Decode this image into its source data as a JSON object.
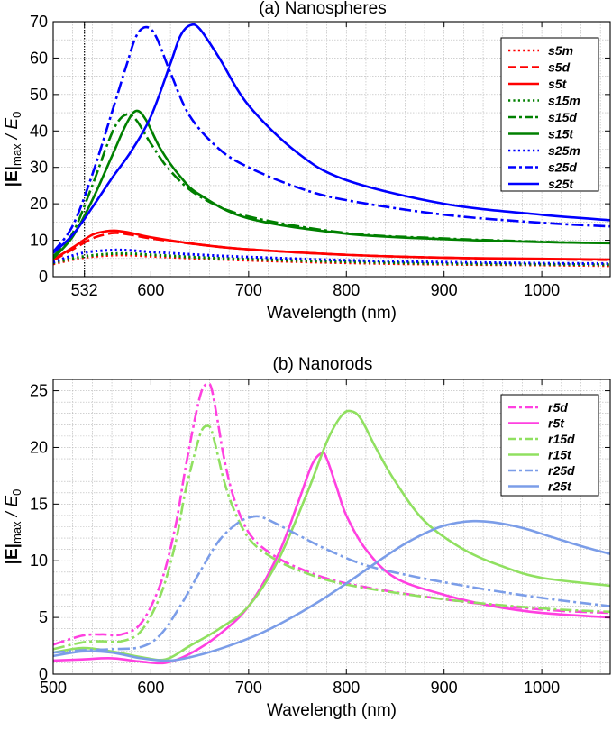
{
  "chart_data": [
    {
      "id": "a",
      "type": "line",
      "title": "(a) Nanospheres",
      "xlabel": "Wavelength (nm)",
      "ylabel_main": "|E|",
      "ylabel_sub": "max",
      "ylabel_tail": " / E",
      "ylabel_sub2": "0",
      "xlim": [
        500,
        1070
      ],
      "ylim": [
        0,
        70
      ],
      "xticks": [
        532,
        600,
        700,
        800,
        900,
        1000
      ],
      "yticks": [
        0,
        10,
        20,
        30,
        40,
        50,
        60,
        70
      ],
      "vline": 532,
      "grid": true,
      "legend_position": "top-right",
      "series": [
        {
          "name": "s5m",
          "color": "#ff0000",
          "dash": "dot",
          "x": [
            500,
            530,
            560,
            580,
            600,
            650,
            700,
            800,
            900,
            1000,
            1070
          ],
          "y": [
            3.5,
            5.2,
            5.9,
            5.9,
            5.6,
            5.0,
            4.5,
            3.8,
            3.4,
            3.2,
            3.0
          ]
        },
        {
          "name": "s5d",
          "color": "#ff0000",
          "dash": "dash",
          "x": [
            500,
            520,
            540,
            555,
            565,
            580,
            600,
            650,
            700,
            800,
            900,
            1000,
            1070
          ],
          "y": [
            4.5,
            7.5,
            10.5,
            11.7,
            12.0,
            11.5,
            10.5,
            8.8,
            7.5,
            6.0,
            5.2,
            4.8,
            4.6
          ]
        },
        {
          "name": "s5t",
          "color": "#ff0000",
          "dash": "solid",
          "x": [
            500,
            520,
            540,
            555,
            565,
            580,
            600,
            650,
            700,
            800,
            900,
            1000,
            1070
          ],
          "y": [
            4.7,
            8.0,
            11.5,
            12.5,
            12.6,
            12.0,
            10.8,
            8.8,
            7.5,
            6.0,
            5.2,
            4.9,
            4.7
          ]
        },
        {
          "name": "s15m",
          "color": "#008000",
          "dash": "dot",
          "x": [
            500,
            530,
            560,
            580,
            600,
            650,
            700,
            800,
            900,
            1000,
            1070
          ],
          "y": [
            3.8,
            5.5,
            6.3,
            6.3,
            6.0,
            5.3,
            4.8,
            4.1,
            3.6,
            3.4,
            3.3
          ]
        },
        {
          "name": "s15d",
          "color": "#008000",
          "dash": "dashdot",
          "x": [
            500,
            520,
            540,
            555,
            565,
            575,
            585,
            600,
            620,
            650,
            700,
            800,
            900,
            1000,
            1070
          ],
          "y": [
            5.5,
            12.0,
            25.0,
            36.0,
            42.0,
            44.5,
            43.0,
            36.5,
            29.0,
            22.0,
            16.5,
            12.0,
            10.5,
            9.6,
            9.2
          ]
        },
        {
          "name": "s15t",
          "color": "#008000",
          "dash": "solid",
          "x": [
            500,
            520,
            540,
            560,
            575,
            585,
            595,
            610,
            630,
            650,
            700,
            800,
            900,
            1000,
            1070
          ],
          "y": [
            5.0,
            11.0,
            21.0,
            33.0,
            42.0,
            45.5,
            43.0,
            35.0,
            27.5,
            22.5,
            16.0,
            11.8,
            10.3,
            9.5,
            9.2
          ]
        },
        {
          "name": "s25m",
          "color": "#0000ff",
          "dash": "dot",
          "x": [
            500,
            530,
            560,
            580,
            600,
            650,
            700,
            800,
            900,
            1000,
            1070
          ],
          "y": [
            4.0,
            6.5,
            7.3,
            7.2,
            6.8,
            6.0,
            5.4,
            4.5,
            4.0,
            3.7,
            3.6
          ]
        },
        {
          "name": "s25d",
          "color": "#0000ff",
          "dash": "dashdot",
          "x": [
            500,
            520,
            540,
            560,
            575,
            585,
            595,
            605,
            620,
            640,
            670,
            700,
            750,
            800,
            900,
            1000,
            1070
          ],
          "y": [
            6.8,
            14.0,
            28.0,
            45.0,
            58.0,
            66.0,
            68.5,
            66.0,
            56.0,
            44.0,
            35.0,
            30.0,
            24.5,
            21.0,
            17.0,
            14.8,
            13.8
          ]
        },
        {
          "name": "s25t",
          "color": "#0000ff",
          "dash": "solid",
          "x": [
            500,
            520,
            540,
            560,
            580,
            600,
            620,
            630,
            640,
            650,
            670,
            700,
            750,
            800,
            900,
            1000,
            1070
          ],
          "y": [
            6.5,
            11.5,
            19.0,
            27.0,
            34.5,
            44.0,
            58.5,
            66.0,
            69.0,
            68.0,
            60.0,
            47.0,
            34.0,
            26.5,
            20.0,
            17.0,
            15.5
          ]
        }
      ]
    },
    {
      "id": "b",
      "type": "line",
      "title": "(b) Nanorods",
      "xlabel": "Wavelength (nm)",
      "ylabel_main": "|E|",
      "ylabel_sub": "max",
      "ylabel_tail": " / E",
      "ylabel_sub2": "0",
      "xlim": [
        500,
        1070
      ],
      "ylim": [
        0,
        26
      ],
      "xticks": [
        500,
        600,
        700,
        800,
        900,
        1000
      ],
      "yticks": [
        0,
        5,
        10,
        15,
        20,
        25
      ],
      "grid": true,
      "legend_position": "top-right",
      "series": [
        {
          "name": "r5d",
          "color": "#ff40e0",
          "dash": "dashdot",
          "x": [
            500,
            530,
            550,
            570,
            590,
            610,
            625,
            635,
            645,
            652,
            658,
            662,
            668,
            675,
            685,
            700,
            720,
            750,
            800,
            900,
            1000,
            1070
          ],
          "y": [
            2.6,
            3.4,
            3.5,
            3.5,
            4.5,
            8.0,
            13.0,
            18.0,
            22.5,
            25.0,
            25.6,
            25.2,
            22.5,
            19.0,
            15.5,
            12.5,
            10.8,
            9.4,
            8.0,
            6.6,
            5.7,
            5.4
          ]
        },
        {
          "name": "r5t",
          "color": "#ff40e0",
          "dash": "solid",
          "x": [
            500,
            530,
            560,
            590,
            615,
            640,
            670,
            700,
            730,
            750,
            765,
            775,
            780,
            790,
            800,
            820,
            850,
            900,
            950,
            1000,
            1070
          ],
          "y": [
            1.2,
            1.3,
            1.4,
            1.1,
            1.0,
            1.8,
            3.5,
            6.0,
            10.5,
            15.0,
            18.5,
            19.5,
            19.0,
            16.5,
            14.0,
            11.0,
            8.5,
            7.0,
            6.0,
            5.4,
            5.0
          ]
        },
        {
          "name": "r15d",
          "color": "#90e060",
          "dash": "dashdot",
          "x": [
            500,
            530,
            550,
            570,
            590,
            610,
            625,
            635,
            645,
            652,
            658,
            662,
            668,
            675,
            685,
            700,
            720,
            750,
            800,
            900,
            1000,
            1070
          ],
          "y": [
            2.2,
            2.8,
            2.9,
            2.9,
            3.8,
            7.0,
            11.5,
            16.0,
            19.5,
            21.5,
            21.9,
            21.5,
            19.5,
            17.0,
            14.5,
            12.0,
            10.5,
            9.2,
            7.9,
            6.6,
            5.8,
            5.5
          ]
        },
        {
          "name": "r15t",
          "color": "#90e060",
          "dash": "solid",
          "x": [
            500,
            530,
            560,
            590,
            615,
            640,
            670,
            700,
            730,
            760,
            780,
            795,
            805,
            815,
            830,
            850,
            880,
            920,
            960,
            1000,
            1070
          ],
          "y": [
            1.9,
            2.3,
            2.0,
            1.5,
            1.3,
            2.5,
            4.0,
            6.0,
            10.0,
            16.0,
            20.5,
            22.8,
            23.2,
            22.5,
            20.0,
            17.0,
            13.5,
            11.0,
            9.5,
            8.5,
            7.8
          ]
        },
        {
          "name": "r25d",
          "color": "#7b9de8",
          "dash": "dashdot",
          "x": [
            500,
            530,
            560,
            590,
            610,
            630,
            650,
            670,
            690,
            705,
            715,
            730,
            750,
            780,
            820,
            870,
            920,
            970,
            1020,
            1070
          ],
          "y": [
            1.9,
            2.1,
            2.2,
            2.4,
            3.5,
            6.0,
            9.0,
            11.8,
            13.4,
            13.9,
            13.8,
            13.2,
            12.3,
            11.0,
            9.6,
            8.6,
            7.8,
            7.1,
            6.5,
            6.0
          ]
        },
        {
          "name": "r25t",
          "color": "#7b9de8",
          "dash": "solid",
          "x": [
            500,
            530,
            560,
            590,
            620,
            650,
            680,
            710,
            740,
            770,
            800,
            830,
            860,
            890,
            910,
            930,
            950,
            980,
            1010,
            1040,
            1070
          ],
          "y": [
            1.6,
            2.0,
            1.9,
            1.4,
            1.2,
            1.7,
            2.5,
            3.5,
            4.8,
            6.3,
            8.0,
            9.8,
            11.5,
            12.8,
            13.3,
            13.5,
            13.4,
            12.9,
            12.1,
            11.3,
            10.6
          ]
        }
      ]
    }
  ]
}
